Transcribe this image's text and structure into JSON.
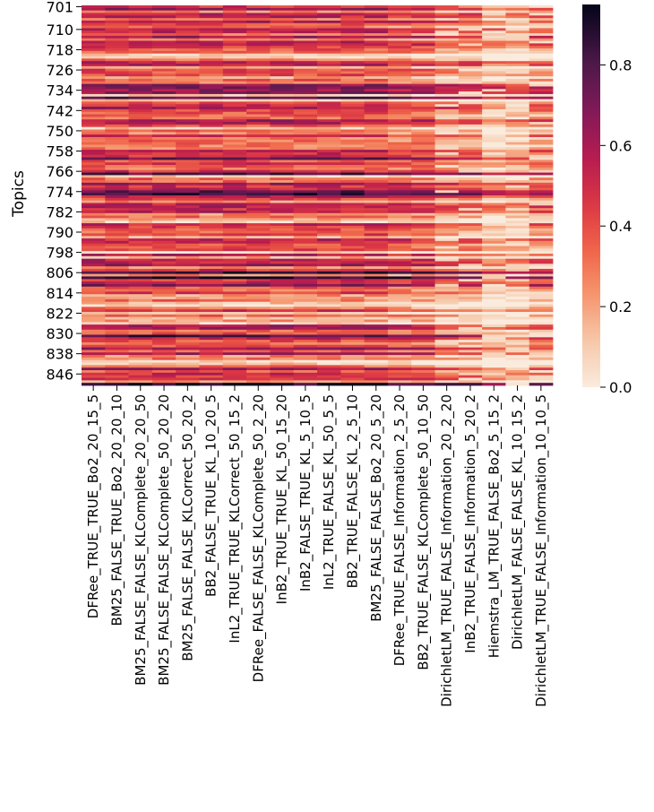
{
  "chart_data": {
    "type": "heatmap",
    "title": "",
    "xlabel": "",
    "ylabel": "Topics",
    "columns": [
      "DFRee_TRUE_TRUE_Bo2_20_15_5",
      "BM25_FALSE_TRUE_Bo2_20_20_10",
      "BM25_FALSE_FALSE_KLComplete_20_20_50",
      "BM25_FALSE_FALSE_KLComplete_50_20_20",
      "BM25_FALSE_FALSE_KLCorrect_50_20_2",
      "BB2_FALSE_TRUE_KL_10_20_5",
      "InL2_TRUE_TRUE_KLCorrect_50_15_2",
      "DFRee_FALSE_FALSE_KLComplete_50_2_20",
      "InB2_TRUE_TRUE_KL_50_15_20",
      "InB2_FALSE_TRUE_KL_5_10_5",
      "InL2_TRUE_FALSE_KL_50_5_5",
      "BB2_TRUE_FALSE_KL_2_5_10",
      "BM25_FALSE_FALSE_Bo2_20_5_20",
      "DFRee_TRUE_FALSE_Information_2_5_20",
      "BB2_TRUE_FALSE_KLComplete_50_10_50",
      "DirichletLM_TRUE_FALSE_Information_20_2_20",
      "InB2_TRUE_FALSE_Information_5_20_2",
      "Hiemstra_LM_TRUE_FALSE_Bo2_5_15_2",
      "DirichletLM_FALSE_FALSE_KL_10_15_2",
      "DirichletLM_TRUE_FALSE_Information_10_10_5"
    ],
    "topic_start": 701,
    "topic_end": 850,
    "y_tick_labels": [
      "701",
      "710",
      "718",
      "726",
      "734",
      "742",
      "750",
      "758",
      "766",
      "774",
      "782",
      "790",
      "798",
      "806",
      "814",
      "822",
      "830",
      "838",
      "846"
    ],
    "colorbar": {
      "vmin": 0.0,
      "vmax": 0.95,
      "ticks": [
        0.0,
        0.2,
        0.4,
        0.6,
        0.8
      ],
      "tick_labels": [
        "0.0",
        "0.2",
        "0.4",
        "0.6",
        "0.8"
      ],
      "colormap": "rocket_r"
    },
    "values_note": "Per-cell scores in [0, 0.95]; rows = topics 701-850, columns = runs."
  }
}
